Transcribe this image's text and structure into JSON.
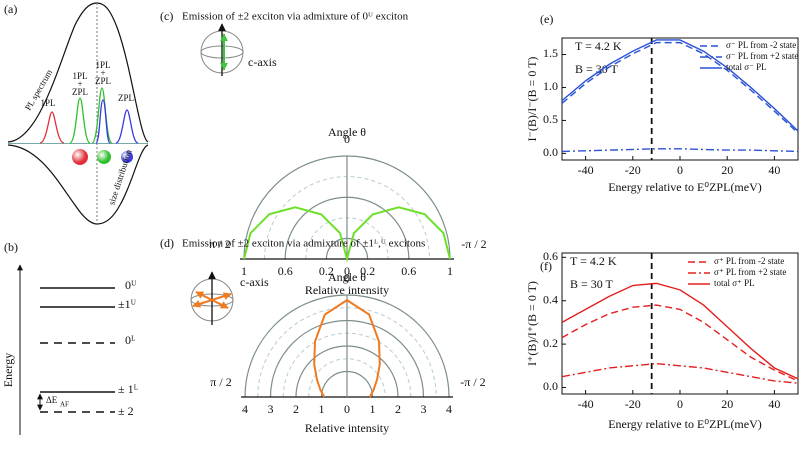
{
  "panel_a": {
    "label": "(a)",
    "spectrum": "PL spectrum",
    "distribution": "size distribution",
    "peaks": [
      {
        "text": "1PL",
        "color": "#e0303a"
      },
      {
        "text": "1PL",
        "color": "#2fc02f"
      },
      {
        "text": "+",
        "color": "#2fc02f"
      },
      {
        "text": "ZPL",
        "color": "#2fc02f"
      },
      {
        "text": "1PL",
        "color": "#3a3ae0"
      },
      {
        "text": "+",
        "color": "#3a3ae0"
      },
      {
        "text": "ZPL",
        "color": "#3a3ae0"
      },
      {
        "text": "ZPL",
        "color": "#3a3ae0"
      }
    ]
  },
  "panel_b": {
    "label": "(b)",
    "axis": "Energy",
    "levels": [
      "0ᵁ",
      "±1ᵁ",
      "0ᴸ",
      "± 1ᴸ",
      "± 2"
    ],
    "gap": "ΔE",
    "gap_sub": "AF"
  },
  "chart_data": [
    {
      "type": "polar",
      "label": "(c)",
      "title": "Emission of ±2 exciton via admixture of 0ᵁ exciton",
      "axis_note": "c-axis",
      "angle_label": "Angle θ",
      "angle_ticks": [
        {
          "value": 90,
          "label": "π / 2"
        },
        {
          "value": 0,
          "label": "0"
        },
        {
          "value": -90,
          "label": "-π / 2"
        }
      ],
      "rlim": [
        0,
        1
      ],
      "rticks": [
        0,
        0.2,
        0.6,
        1
      ],
      "rminor": [
        0.4,
        0.8
      ],
      "xlabel": "Relative intensity",
      "theta": [
        -90,
        -75,
        -60,
        -45,
        -30,
        -15,
        0,
        15,
        30,
        45,
        60,
        75,
        90
      ],
      "series": [
        {
          "color": "#6ee02a",
          "r": [
            1,
            0.97,
            0.87,
            0.71,
            0.5,
            0.26,
            0,
            0.26,
            0.5,
            0.71,
            0.87,
            0.97,
            1
          ]
        }
      ]
    },
    {
      "type": "polar",
      "label": "(d)",
      "title": "Emission of ±2 exciton via admixture of ±1ᴸ,ᵁ excitons",
      "axis_note": "c-axis",
      "angle_label": "Angle θ",
      "angle_ticks": [
        {
          "value": 90,
          "label": "π / 2"
        },
        {
          "value": 0,
          "label": "0"
        },
        {
          "value": -90,
          "label": "-π / 2"
        }
      ],
      "rlim": [
        0,
        4
      ],
      "rticks": [
        0,
        1,
        2,
        3,
        4
      ],
      "rminor": [
        1.5,
        2.5,
        3.5
      ],
      "xlabel": "Relative intensity",
      "theta": [
        -90,
        -75,
        -60,
        -45,
        -30,
        -15,
        0,
        15,
        30,
        45,
        60,
        75,
        90
      ],
      "series": [
        {
          "color": "#f07a20",
          "r": [
            0.89,
            1.08,
            1.36,
            1.82,
            2.51,
            3.35,
            3.8,
            3.35,
            2.51,
            1.82,
            1.36,
            1.08,
            0.89
          ]
        }
      ]
    },
    {
      "type": "line",
      "label": "(e)",
      "annotations": [
        "T = 4.2 K",
        "B = 30 T"
      ],
      "ylabel": "I⁻(B)/I⁻(B = 0 T)",
      "xlabel": "Energy relative to E⁰ZPL(meV)",
      "x": [
        -50,
        -40,
        -30,
        -20,
        -10,
        0,
        10,
        20,
        30,
        40,
        50
      ],
      "xlim": [
        -50,
        50
      ],
      "xticks": [
        -40,
        -20,
        0,
        20,
        40
      ],
      "ylim": [
        -0.1,
        1.75
      ],
      "yticks": [
        {
          "value": 0,
          "label": "0.0"
        },
        {
          "value": 0.5,
          "label": "0.5"
        },
        {
          "value": 1,
          "label": "1.0"
        },
        {
          "value": 1.5,
          "label": "1.5"
        }
      ],
      "vline": -12,
      "series": [
        {
          "name": "σ⁻ PL from -2 state",
          "color": "#2a52d6",
          "dash": "dashed",
          "values": [
            0.76,
            1.06,
            1.31,
            1.51,
            1.68,
            1.68,
            1.51,
            1.26,
            0.96,
            0.64,
            0.31
          ]
        },
        {
          "name": "σ⁻ PL from +2 state",
          "color": "#2a52d6",
          "dash": "dashdot",
          "values": [
            0.03,
            0.04,
            0.05,
            0.06,
            0.07,
            0.07,
            0.06,
            0.05,
            0.05,
            0.04,
            0.03
          ]
        },
        {
          "name": "total σ⁻  PL",
          "color": "#2a52d6",
          "dash": "solid",
          "values": [
            0.8,
            1.1,
            1.35,
            1.55,
            1.72,
            1.72,
            1.55,
            1.3,
            1.0,
            0.68,
            0.34
          ]
        }
      ]
    },
    {
      "type": "line",
      "label": "(f)",
      "annotations": [
        "T = 4.2 K",
        "B = 30 T"
      ],
      "ylabel": "I⁺(B)/I⁺(B = 0 T)",
      "xlabel": "Energy relative to E⁰ZPL(meV)",
      "x": [
        -50,
        -40,
        -30,
        -20,
        -10,
        0,
        10,
        20,
        30,
        40,
        50
      ],
      "xlim": [
        -50,
        50
      ],
      "xticks": [
        -40,
        -20,
        0,
        20,
        40
      ],
      "ylim": [
        -0.03,
        0.62
      ],
      "yticks": [
        {
          "value": 0,
          "label": "0.0"
        },
        {
          "value": 0.2,
          "label": "0.2"
        },
        {
          "value": 0.4,
          "label": "0.4"
        },
        {
          "value": 0.6,
          "label": "0.6"
        }
      ],
      "vline": -12,
      "series": [
        {
          "name": "σ⁺ PL from -2 state",
          "color": "#e32020",
          "dash": "dashed",
          "values": [
            0.23,
            0.29,
            0.34,
            0.37,
            0.38,
            0.36,
            0.3,
            0.22,
            0.14,
            0.08,
            0.03
          ]
        },
        {
          "name": "σ⁺ PL from +2 state",
          "color": "#e32020",
          "dash": "dashdot",
          "values": [
            0.05,
            0.07,
            0.09,
            0.1,
            0.11,
            0.1,
            0.09,
            0.07,
            0.05,
            0.03,
            0.02
          ]
        },
        {
          "name": "total σ⁺ PL",
          "color": "#e32020",
          "dash": "solid",
          "values": [
            0.3,
            0.36,
            0.42,
            0.47,
            0.48,
            0.45,
            0.38,
            0.28,
            0.18,
            0.09,
            0.04
          ]
        }
      ]
    }
  ]
}
